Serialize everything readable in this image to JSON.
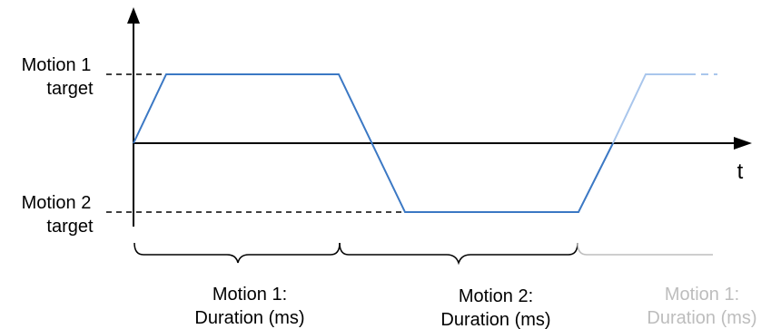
{
  "diagram": {
    "y_labels": {
      "motion1": [
        "Motion 1",
        "target"
      ],
      "motion2": [
        "Motion 2",
        "target"
      ]
    },
    "x_axis_label": "t",
    "segments": [
      {
        "lines": [
          "Motion 1:",
          "Duration (ms)"
        ],
        "faded": false
      },
      {
        "lines": [
          "Motion 2:",
          "Duration (ms)"
        ],
        "faded": false
      },
      {
        "lines": [
          "Motion 1:",
          "Duration (ms)"
        ],
        "faded": true
      }
    ],
    "colors": {
      "signal": "#3b78c4",
      "signal_faded": "#a9c6ec",
      "brace": "#000000",
      "brace_faded": "#bdbdbd",
      "text_faded": "#bdbdbd"
    }
  }
}
